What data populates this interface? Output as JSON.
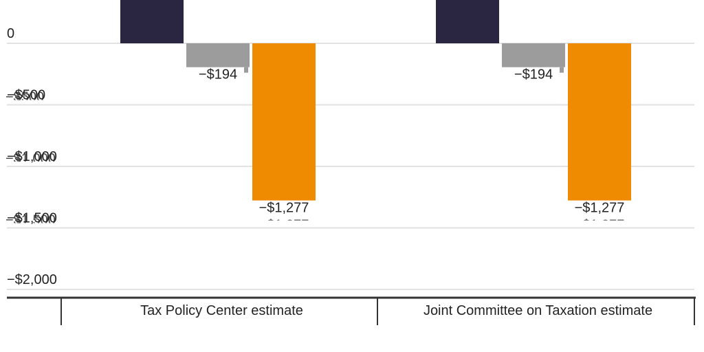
{
  "chart_data": {
    "type": "bar",
    "title": "",
    "xlabel": "",
    "ylabel": "",
    "categories": [
      "Tax Policy Center estimate",
      "Joint Committee on Taxation estimate"
    ],
    "series": [
      {
        "color": "#2a2540",
        "values": [
          null,
          null
        ]
      },
      {
        "color": "#9c9c9c",
        "values": [
          -194,
          -194
        ]
      },
      {
        "color": "#ee8b00",
        "values": [
          -1277,
          -1277
        ]
      }
    ],
    "data_labels": [
      [
        null,
        "−$194",
        "−$1,277"
      ],
      [
        null,
        "−$194",
        "−$1,277"
      ]
    ],
    "y_ticks": [
      {
        "value": 0,
        "label": "0"
      },
      {
        "value": -500,
        "label": "−$500"
      },
      {
        "value": -1000,
        "label": "−$1,000"
      },
      {
        "value": -1500,
        "label": "−$1,500"
      },
      {
        "value": -2000,
        "label": "−$2,000"
      }
    ],
    "ghost_ticks": [
      "−$500",
      "−$1,000",
      "−$1,500"
    ],
    "ylim": [
      -2000,
      0
    ],
    "grid": true,
    "colors": {
      "grid": "#e2e2e2",
      "axis": "#333333",
      "text": "#222222"
    }
  }
}
